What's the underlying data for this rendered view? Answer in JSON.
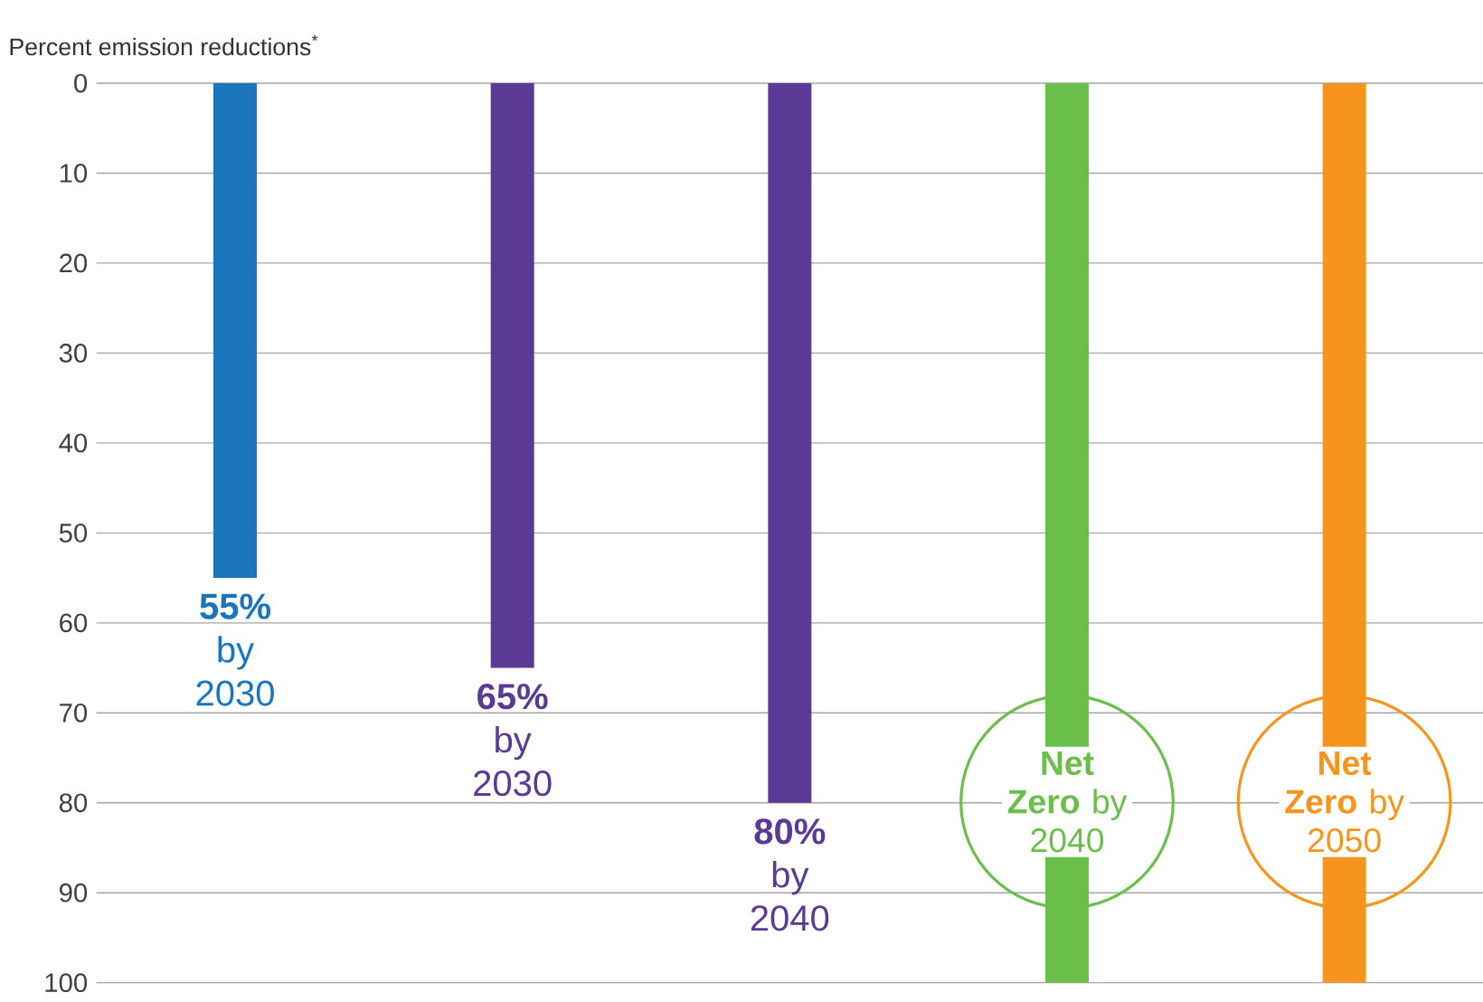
{
  "chart_data": {
    "type": "bar",
    "ylabel": "Percent emission reductions$^{*}$",
    "categories": [
      null,
      null,
      null,
      null,
      null
    ],
    "values": [
      55,
      65,
      80,
      100,
      100
    ],
    "colors": [
      "#1a75bc",
      "#5b3a96",
      "#5b3a96",
      "#6abf4b",
      "#f7941d"
    ],
    "value_labels": [
      "**55%** by 2030",
      "**65%** by 2030",
      "**80%** by 2040",
      "**Net Zero** by 2040",
      "**Net Zero** by 2050"
    ],
    "ylim": [
      100,
      0
    ],
    "yticks": [
      0,
      10,
      20,
      30,
      40,
      50,
      60,
      70,
      80,
      90,
      100
    ],
    "grid": "y",
    "tick_labels": "y"
  }
}
